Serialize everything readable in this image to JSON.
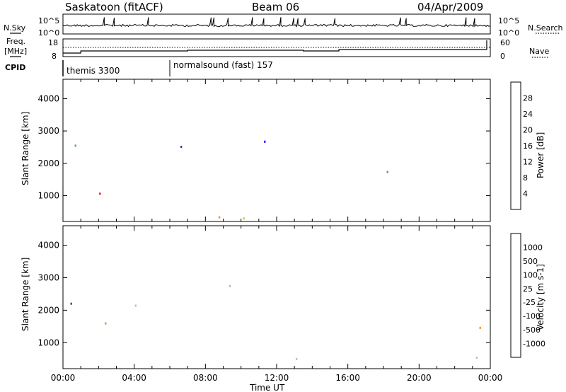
{
  "header": {
    "station": "Saskatoon (fitACF)",
    "beam": "Beam 06",
    "date": "04/Apr/2009"
  },
  "top_panels": {
    "left_labels": {
      "nsky": "N.Sky",
      "freq": "Freq.",
      "mhz": "[MHz]",
      "cpid": "CPID"
    },
    "right_labels": {
      "nsearch": "N.Search",
      "nave": "Nave"
    },
    "nsky_ticks_left": [
      "10^5",
      "10^0"
    ],
    "nsky_ticks_right": [
      "10^5",
      "10^0"
    ],
    "freq_ticks": [
      "18",
      "8"
    ],
    "nave_ticks": [
      "60",
      "0"
    ],
    "cpid_segments": [
      {
        "label": "themis 3300",
        "start_hour": 0
      },
      {
        "label": "normalsound (fast) 157",
        "start_hour": 6
      }
    ]
  },
  "chart_data": [
    {
      "type": "heatmap",
      "title": "Power",
      "ylabel": "Slant Range [km]",
      "xlabel": "Time UT",
      "x_range_hours": [
        0,
        24
      ],
      "ylim_km": [
        200,
        4600
      ],
      "y_ticks": [
        "1000",
        "2000",
        "3000",
        "4000"
      ],
      "x_ticks": [
        "00:00",
        "04:00",
        "08:00",
        "12:00",
        "16:00",
        "20:00",
        "00:00"
      ],
      "colorbar": {
        "label": "Power [dB]",
        "ticks": [
          "28",
          "24",
          "20",
          "16",
          "12",
          "8",
          "4"
        ],
        "colors": [
          "#0000ff",
          "#2233aa",
          "#226644",
          "#44aa44",
          "#aadd22",
          "#ffcc00",
          "#ff8800",
          "#ff4400",
          "#ff0000"
        ]
      }
    },
    {
      "type": "heatmap",
      "title": "Velocity",
      "ylabel": "Slant Range [km]",
      "xlabel": "Time UT",
      "x_range_hours": [
        0,
        24
      ],
      "ylim_km": [
        200,
        4600
      ],
      "y_ticks": [
        "1000",
        "2000",
        "3000",
        "4000"
      ],
      "x_ticks": [
        "00:00",
        "04:00",
        "08:00",
        "12:00",
        "16:00",
        "20:00",
        "00:00"
      ],
      "colorbar": {
        "label": "Velocity [m s-1]",
        "ticks": [
          "1000",
          "500",
          "100",
          "25",
          "-25",
          "-100",
          "-500",
          "-1000"
        ],
        "colors": [
          "#1a3aa0",
          "#2a6ad0",
          "#2a7a3a",
          "#55cc33",
          "#b8b8b8",
          "#b8b8b8",
          "#ff8800",
          "#ff5500",
          "#ff0000"
        ]
      }
    }
  ],
  "x_axis": {
    "label": "Time UT",
    "ticks": [
      "00:00",
      "04:00",
      "08:00",
      "12:00",
      "16:00",
      "20:00",
      "00:00"
    ]
  }
}
